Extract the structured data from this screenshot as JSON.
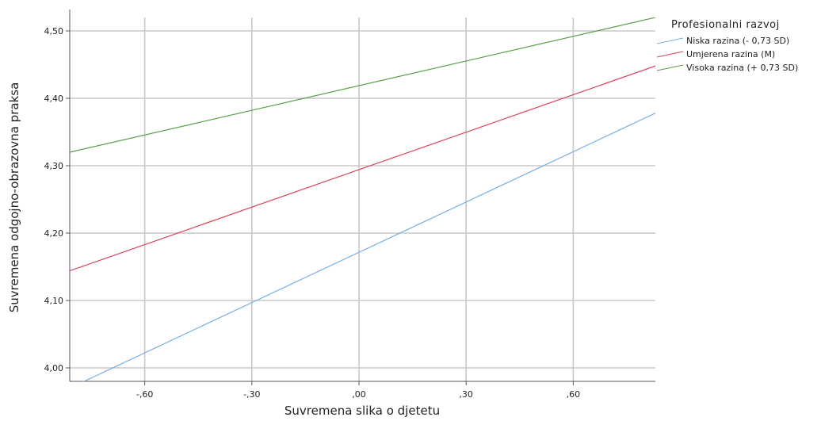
{
  "chart_data": {
    "type": "line",
    "xlabel": "Suvremena slika o djetetu",
    "ylabel": "Suvremena odgojno-obrazovna praksa",
    "xlim": [
      -0.81,
      0.83
    ],
    "ylim": [
      3.98,
      4.52
    ],
    "xticks": [
      {
        "value": -0.6,
        "label": "-,60"
      },
      {
        "value": -0.3,
        "label": "-,30"
      },
      {
        "value": 0.0,
        "label": ",00"
      },
      {
        "value": 0.3,
        "label": ",30"
      },
      {
        "value": 0.6,
        "label": ",60"
      }
    ],
    "yticks": [
      {
        "value": 4.0,
        "label": "4,00"
      },
      {
        "value": 4.1,
        "label": "4,10"
      },
      {
        "value": 4.2,
        "label": "4,20"
      },
      {
        "value": 4.3,
        "label": "4,30"
      },
      {
        "value": 4.4,
        "label": "4,40"
      },
      {
        "value": 4.5,
        "label": "4,50"
      }
    ],
    "grid": true,
    "legend": {
      "title": "Profesionalni razvoj",
      "placement": "right"
    },
    "series": [
      {
        "name": "Niska razina (- 0,73 SD)",
        "color": "#7aaee6",
        "x": [
          -0.81,
          0.83
        ],
        "y": [
          3.97,
          4.378
        ]
      },
      {
        "name": "Umjerena razina (M)",
        "color": "#e0405a",
        "x": [
          -0.81,
          0.83
        ],
        "y": [
          4.144,
          4.448
        ]
      },
      {
        "name": "Visoka razina (+ 0,73 SD)",
        "color": "#5a9e4a",
        "x": [
          -0.81,
          0.83
        ],
        "y": [
          4.32,
          4.52
        ]
      }
    ]
  }
}
